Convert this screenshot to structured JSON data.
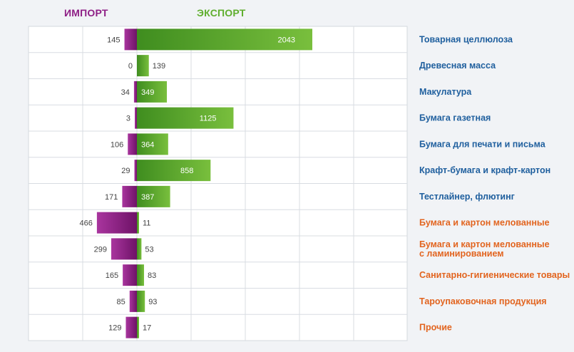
{
  "chart_data": {
    "type": "bar",
    "orientation": "horizontal-diverging",
    "title": "",
    "legend": [
      {
        "name": "ИМПОРТ",
        "color": "#8e1f85"
      },
      {
        "name": "ЭКСПОРТ",
        "color": "#5fae2e"
      }
    ],
    "categories": [
      "Товарная целлюлоза",
      "Древесная масса",
      "Макулатура",
      "Бумага газетная",
      "Бумага для печати и письма",
      "Крафт-бумага и крафт-картон",
      "Тестлайнер, флютинг",
      "Бумага и картон мелованные",
      [
        "Бумага и картон мелованные",
        "с ламинированием"
      ],
      "Санитарно-гигиенические товары",
      "Тароупаковочная продукция",
      "Прочие"
    ],
    "category_colors": [
      "#1f5f9e",
      "#1f5f9e",
      "#1f5f9e",
      "#1f5f9e",
      "#1f5f9e",
      "#1f5f9e",
      "#1f5f9e",
      "#e2641f",
      "#e2641f",
      "#e2641f",
      "#e2641f",
      "#e2641f"
    ],
    "series": [
      {
        "name": "ИМПОРТ",
        "values": [
          145,
          0,
          34,
          3,
          106,
          29,
          171,
          466,
          299,
          165,
          85,
          129
        ]
      },
      {
        "name": "ЭКСПОРТ",
        "values": [
          2043,
          139,
          349,
          1125,
          364,
          858,
          387,
          11,
          53,
          83,
          93,
          17
        ]
      }
    ],
    "grid": true
  }
}
